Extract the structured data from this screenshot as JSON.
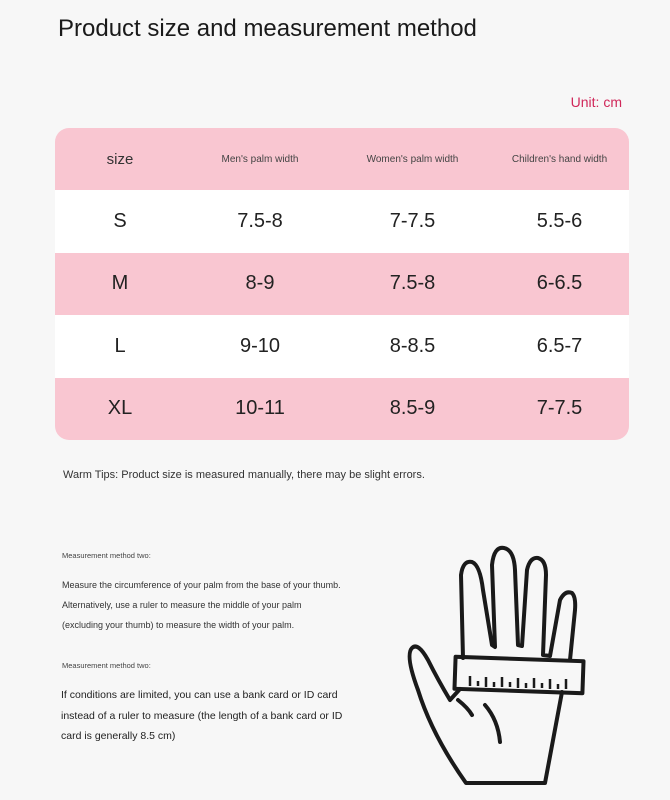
{
  "title": "Product size and measurement method",
  "unit": "Unit: cm",
  "table": {
    "headers": [
      "size",
      "Men's palm width",
      "Women's palm width",
      "Children's hand width"
    ],
    "rows": [
      [
        "S",
        "7.5-8",
        "7-7.5",
        "5.5-6"
      ],
      [
        "M",
        "8-9",
        "7.5-8",
        "6-6.5"
      ],
      [
        "L",
        "9-10",
        "8-8.5",
        "6.5-7"
      ],
      [
        "XL",
        "10-11",
        "8.5-9",
        "7-7.5"
      ]
    ]
  },
  "tips": "Warm Tips: Product size is measured manually, there may be slight errors.",
  "method1": {
    "heading": "Measurement method two:",
    "text": "Measure the circumference of your palm from the base of your thumb. Alternatively, use a ruler to measure the middle of your palm (excluding your thumb) to measure the width of your palm."
  },
  "method2": {
    "heading": "Measurement method two:",
    "text": "If conditions are limited, you can use a bank card or ID card instead of a ruler to measure (the length of a bank card or ID card is generally 8.5 cm)"
  },
  "colors": {
    "pink": "#f9c6d1",
    "accent": "#d0285a"
  },
  "illustration": "hand-with-ruler-icon"
}
